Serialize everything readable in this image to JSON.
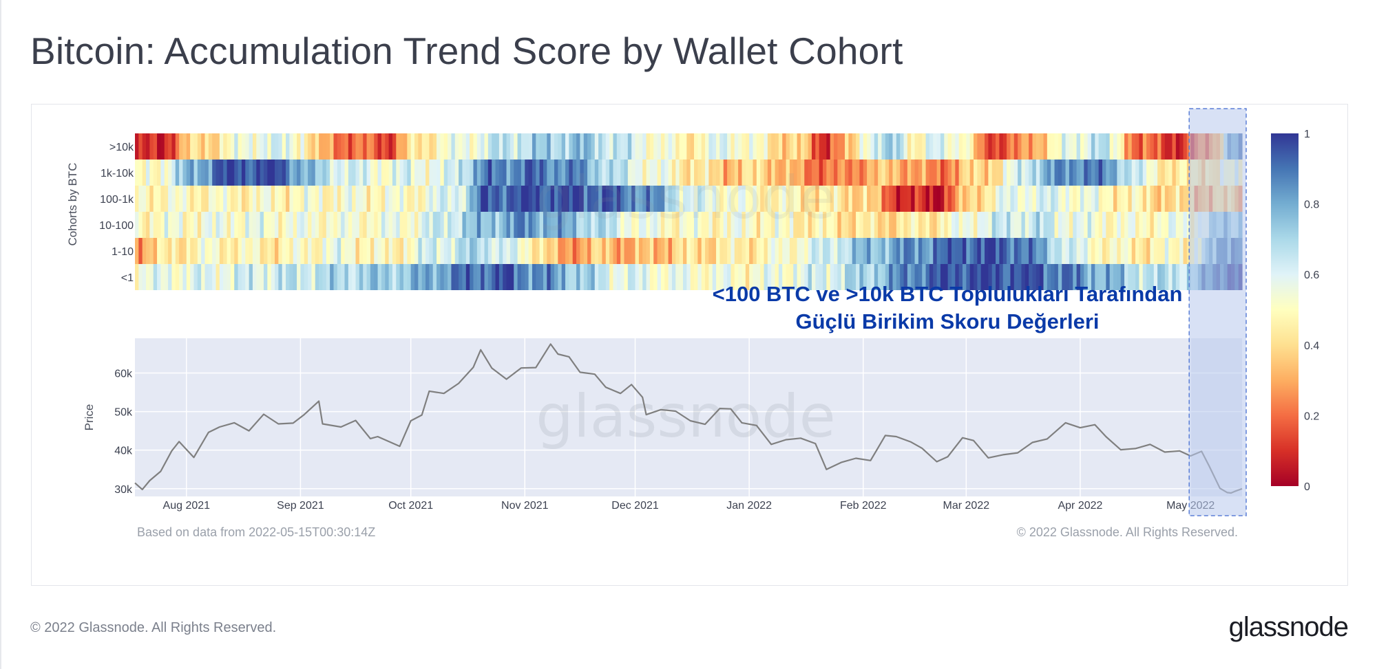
{
  "page": {
    "title": "Bitcoin: Accumulation Trend Score by Wallet Cohort",
    "footer_copyright": "© 2022 Glassnode. All Rights Reserved.",
    "footer_logo": "glassnode"
  },
  "chart": {
    "watermark": "glassnode",
    "source_note": "Based on data from 2022-05-15T00:30:14Z",
    "copyright": "© 2022 Glassnode. All Rights Reserved.",
    "annotation_line1": "<100 BTC ve >10k BTC Toplulukları Tarafından",
    "annotation_line2": "Güçlü Birikim Skoru Değerleri",
    "colors": {
      "annotation_text": "#0a3aa8",
      "highlight_fill": "#b8c8ec",
      "highlight_border": "#5b7fd6",
      "price_line": "#7f7f7f",
      "price_panel_bg": "#e5e9f4",
      "colorscale": [
        "#a50026",
        "#d73027",
        "#f46d43",
        "#fdae61",
        "#fee090",
        "#ffffbf",
        "#e0f3f8",
        "#abd9e9",
        "#74add1",
        "#4575b4",
        "#313695"
      ]
    }
  },
  "chart_data": [
    {
      "type": "heatmap",
      "ylabel": "Cohorts by BTC",
      "rows": [
        ">10k",
        "1k-10k",
        "100-1k",
        "10-100",
        "1-10",
        "<1"
      ],
      "colorbar_ticks": [
        "1",
        "0.8",
        "0.6",
        "0.4",
        "0.2",
        "0"
      ],
      "zlim": [
        0,
        1
      ],
      "x_range": [
        "2021-07-18",
        "2022-05-15"
      ],
      "highlight_range": [
        "2022-05-01",
        "2022-05-15"
      ],
      "bands": {
        ">10k": [
          [
            "2021-07-18",
            0.05
          ],
          [
            "2021-07-25",
            0.08
          ],
          [
            "2021-08-01",
            0.35
          ],
          [
            "2021-08-10",
            0.45
          ],
          [
            "2021-08-20",
            0.6
          ],
          [
            "2021-09-01",
            0.55
          ],
          [
            "2021-09-05",
            0.3
          ],
          [
            "2021-09-15",
            0.2
          ],
          [
            "2021-09-25",
            0.15
          ],
          [
            "2021-10-01",
            0.4
          ],
          [
            "2021-10-08",
            0.5
          ],
          [
            "2021-10-15",
            0.55
          ],
          [
            "2021-10-25",
            0.65
          ],
          [
            "2021-11-05",
            0.7
          ],
          [
            "2021-11-15",
            0.75
          ],
          [
            "2021-11-25",
            0.65
          ],
          [
            "2021-12-05",
            0.55
          ],
          [
            "2021-12-15",
            0.45
          ],
          [
            "2021-12-25",
            0.6
          ],
          [
            "2022-01-05",
            0.45
          ],
          [
            "2022-01-15",
            0.35
          ],
          [
            "2022-01-20",
            0.12
          ],
          [
            "2022-01-28",
            0.3
          ],
          [
            "2022-02-01",
            0.6
          ],
          [
            "2022-02-10",
            0.7
          ],
          [
            "2022-02-15",
            0.45
          ],
          [
            "2022-02-20",
            0.6
          ],
          [
            "2022-02-28",
            0.55
          ],
          [
            "2022-03-05",
            0.15
          ],
          [
            "2022-03-15",
            0.2
          ],
          [
            "2022-03-25",
            0.5
          ],
          [
            "2022-04-01",
            0.6
          ],
          [
            "2022-04-05",
            0.7
          ],
          [
            "2022-04-12",
            0.45
          ],
          [
            "2022-04-15",
            0.2
          ],
          [
            "2022-04-22",
            0.15
          ],
          [
            "2022-05-01",
            0.1
          ],
          [
            "2022-05-08",
            0.35
          ],
          [
            "2022-05-11",
            0.8
          ]
        ],
        "1k-10k": [
          [
            "2021-07-18",
            0.45
          ],
          [
            "2021-07-25",
            0.55
          ],
          [
            "2021-08-01",
            0.75
          ],
          [
            "2021-08-10",
            0.95
          ],
          [
            "2021-08-25",
            0.98
          ],
          [
            "2021-09-05",
            0.7
          ],
          [
            "2021-09-15",
            0.6
          ],
          [
            "2021-09-25",
            0.55
          ],
          [
            "2021-10-01",
            0.6
          ],
          [
            "2021-10-10",
            0.55
          ],
          [
            "2021-10-20",
            0.85
          ],
          [
            "2021-11-01",
            0.9
          ],
          [
            "2021-11-15",
            0.85
          ],
          [
            "2021-11-25",
            0.65
          ],
          [
            "2021-12-05",
            0.55
          ],
          [
            "2021-12-15",
            0.45
          ],
          [
            "2021-12-25",
            0.35
          ],
          [
            "2022-01-05",
            0.4
          ],
          [
            "2022-01-15",
            0.25
          ],
          [
            "2022-01-25",
            0.2
          ],
          [
            "2022-02-01",
            0.3
          ],
          [
            "2022-02-10",
            0.35
          ],
          [
            "2022-02-20",
            0.2
          ],
          [
            "2022-03-01",
            0.35
          ],
          [
            "2022-03-10",
            0.45
          ],
          [
            "2022-03-20",
            0.75
          ],
          [
            "2022-04-01",
            0.9
          ],
          [
            "2022-04-10",
            0.8
          ],
          [
            "2022-04-20",
            0.5
          ],
          [
            "2022-05-01",
            0.4
          ],
          [
            "2022-05-10",
            0.5
          ]
        ],
        "100-1k": [
          [
            "2021-07-18",
            0.5
          ],
          [
            "2021-08-15",
            0.48
          ],
          [
            "2021-09-15",
            0.52
          ],
          [
            "2021-10-01",
            0.5
          ],
          [
            "2021-10-15",
            0.65
          ],
          [
            "2021-10-20",
            0.92
          ],
          [
            "2021-11-01",
            0.97
          ],
          [
            "2021-11-20",
            0.95
          ],
          [
            "2021-12-05",
            0.85
          ],
          [
            "2021-12-15",
            0.6
          ],
          [
            "2022-01-01",
            0.5
          ],
          [
            "2022-01-15",
            0.45
          ],
          [
            "2022-02-01",
            0.4
          ],
          [
            "2022-02-10",
            0.1
          ],
          [
            "2022-02-20",
            0.05
          ],
          [
            "2022-03-01",
            0.35
          ],
          [
            "2022-03-10",
            0.55
          ],
          [
            "2022-03-20",
            0.6
          ],
          [
            "2022-04-01",
            0.55
          ],
          [
            "2022-04-15",
            0.45
          ],
          [
            "2022-05-01",
            0.35
          ],
          [
            "2022-05-10",
            0.35
          ]
        ],
        "10-100": [
          [
            "2021-07-18",
            0.5
          ],
          [
            "2021-08-15",
            0.55
          ],
          [
            "2021-09-15",
            0.52
          ],
          [
            "2021-10-01",
            0.55
          ],
          [
            "2021-10-15",
            0.7
          ],
          [
            "2021-11-01",
            0.85
          ],
          [
            "2021-11-15",
            0.75
          ],
          [
            "2021-12-01",
            0.55
          ],
          [
            "2021-12-15",
            0.5
          ],
          [
            "2022-01-01",
            0.52
          ],
          [
            "2022-01-20",
            0.45
          ],
          [
            "2022-02-05",
            0.4
          ],
          [
            "2022-02-20",
            0.45
          ],
          [
            "2022-03-05",
            0.6
          ],
          [
            "2022-03-20",
            0.65
          ],
          [
            "2022-04-01",
            0.55
          ],
          [
            "2022-04-15",
            0.5
          ],
          [
            "2022-05-01",
            0.55
          ],
          [
            "2022-05-10",
            0.75
          ]
        ],
        "1-10": [
          [
            "2021-07-18",
            0.3
          ],
          [
            "2021-07-25",
            0.4
          ],
          [
            "2021-08-05",
            0.5
          ],
          [
            "2021-08-25",
            0.45
          ],
          [
            "2021-09-10",
            0.55
          ],
          [
            "2021-09-25",
            0.45
          ],
          [
            "2021-10-05",
            0.6
          ],
          [
            "2021-10-20",
            0.7
          ],
          [
            "2021-11-05",
            0.45
          ],
          [
            "2021-11-10",
            0.25
          ],
          [
            "2021-11-20",
            0.35
          ],
          [
            "2021-12-01",
            0.3
          ],
          [
            "2021-12-15",
            0.4
          ],
          [
            "2022-01-01",
            0.45
          ],
          [
            "2022-01-15",
            0.55
          ],
          [
            "2022-02-01",
            0.75
          ],
          [
            "2022-02-15",
            0.85
          ],
          [
            "2022-03-01",
            0.95
          ],
          [
            "2022-03-15",
            0.92
          ],
          [
            "2022-04-01",
            0.55
          ],
          [
            "2022-04-15",
            0.45
          ],
          [
            "2022-05-01",
            0.5
          ],
          [
            "2022-05-10",
            0.9
          ]
        ],
        "<1": [
          [
            "2021-07-18",
            0.55
          ],
          [
            "2021-08-15",
            0.6
          ],
          [
            "2021-09-15",
            0.7
          ],
          [
            "2021-10-01",
            0.75
          ],
          [
            "2021-10-10",
            0.85
          ],
          [
            "2021-10-25",
            0.95
          ],
          [
            "2021-11-10",
            0.8
          ],
          [
            "2021-11-25",
            0.6
          ],
          [
            "2021-12-10",
            0.55
          ],
          [
            "2022-01-01",
            0.52
          ],
          [
            "2022-01-15",
            0.58
          ],
          [
            "2022-02-01",
            0.7
          ],
          [
            "2022-02-15",
            0.9
          ],
          [
            "2022-03-01",
            0.97
          ],
          [
            "2022-03-20",
            0.95
          ],
          [
            "2022-04-05",
            0.8
          ],
          [
            "2022-04-20",
            0.65
          ],
          [
            "2022-05-01",
            0.7
          ],
          [
            "2022-05-10",
            0.98
          ]
        ]
      }
    },
    {
      "type": "line",
      "ylabel": "Price",
      "ylim": [
        28000,
        69000
      ],
      "yticks": [
        "30k",
        "40k",
        "50k",
        "60k"
      ],
      "x_ticks": [
        "Aug 2021",
        "Sep 2021",
        "Oct 2021",
        "Nov 2021",
        "Dec 2021",
        "Jan 2022",
        "Feb 2022",
        "Mar 2022",
        "Apr 2022",
        "May 2022"
      ],
      "series": [
        {
          "points": [
            [
              "2021-07-18",
              31500
            ],
            [
              "2021-07-20",
              29800
            ],
            [
              "2021-07-22",
              32100
            ],
            [
              "2021-07-25",
              34500
            ],
            [
              "2021-07-28",
              39800
            ],
            [
              "2021-07-30",
              42200
            ],
            [
              "2021-08-03",
              38100
            ],
            [
              "2021-08-07",
              44600
            ],
            [
              "2021-08-10",
              46000
            ],
            [
              "2021-08-14",
              47100
            ],
            [
              "2021-08-18",
              45000
            ],
            [
              "2021-08-22",
              49300
            ],
            [
              "2021-08-26",
              46800
            ],
            [
              "2021-08-30",
              47000
            ],
            [
              "2021-09-02",
              49200
            ],
            [
              "2021-09-06",
              52700
            ],
            [
              "2021-09-07",
              46800
            ],
            [
              "2021-09-12",
              46000
            ],
            [
              "2021-09-16",
              47700
            ],
            [
              "2021-09-20",
              43000
            ],
            [
              "2021-09-22",
              43500
            ],
            [
              "2021-09-28",
              41000
            ],
            [
              "2021-10-01",
              47600
            ],
            [
              "2021-10-04",
              49100
            ],
            [
              "2021-10-06",
              55300
            ],
            [
              "2021-10-10",
              54700
            ],
            [
              "2021-10-14",
              57300
            ],
            [
              "2021-10-18",
              61500
            ],
            [
              "2021-10-20",
              66000
            ],
            [
              "2021-10-23",
              61300
            ],
            [
              "2021-10-27",
              58400
            ],
            [
              "2021-10-31",
              61300
            ],
            [
              "2021-11-04",
              61400
            ],
            [
              "2021-11-08",
              67500
            ],
            [
              "2021-11-10",
              64900
            ],
            [
              "2021-11-13",
              64200
            ],
            [
              "2021-11-16",
              60200
            ],
            [
              "2021-11-20",
              59700
            ],
            [
              "2021-11-23",
              56300
            ],
            [
              "2021-11-27",
              54700
            ],
            [
              "2021-11-30",
              57000
            ],
            [
              "2021-12-03",
              53700
            ],
            [
              "2021-12-04",
              49200
            ],
            [
              "2021-12-08",
              50500
            ],
            [
              "2021-12-12",
              50100
            ],
            [
              "2021-12-16",
              47600
            ],
            [
              "2021-12-20",
              46700
            ],
            [
              "2021-12-24",
              50800
            ],
            [
              "2021-12-27",
              50700
            ],
            [
              "2021-12-30",
              47100
            ],
            [
              "2022-01-03",
              46400
            ],
            [
              "2022-01-07",
              41500
            ],
            [
              "2022-01-11",
              42700
            ],
            [
              "2022-01-15",
              43100
            ],
            [
              "2022-01-19",
              41700
            ],
            [
              "2022-01-22",
              35000
            ],
            [
              "2022-01-26",
              36800
            ],
            [
              "2022-01-30",
              37900
            ],
            [
              "2022-02-03",
              37300
            ],
            [
              "2022-02-07",
              43800
            ],
            [
              "2022-02-10",
              43500
            ],
            [
              "2022-02-14",
              42100
            ],
            [
              "2022-02-17",
              40500
            ],
            [
              "2022-02-21",
              37000
            ],
            [
              "2022-02-24",
              38300
            ],
            [
              "2022-02-28",
              43200
            ],
            [
              "2022-03-03",
              42500
            ],
            [
              "2022-03-07",
              38000
            ],
            [
              "2022-03-11",
              38800
            ],
            [
              "2022-03-15",
              39300
            ],
            [
              "2022-03-19",
              42000
            ],
            [
              "2022-03-23",
              42900
            ],
            [
              "2022-03-28",
              47100
            ],
            [
              "2022-04-01",
              45800
            ],
            [
              "2022-04-05",
              46600
            ],
            [
              "2022-04-08",
              43500
            ],
            [
              "2022-04-12",
              40100
            ],
            [
              "2022-04-16",
              40400
            ],
            [
              "2022-04-20",
              41500
            ],
            [
              "2022-04-24",
              39500
            ],
            [
              "2022-04-28",
              39800
            ],
            [
              "2022-05-01",
              38500
            ],
            [
              "2022-05-04",
              39700
            ],
            [
              "2022-05-06",
              36000
            ],
            [
              "2022-05-09",
              30100
            ],
            [
              "2022-05-11",
              29000
            ],
            [
              "2022-05-12",
              28900
            ],
            [
              "2022-05-13",
              29300
            ],
            [
              "2022-05-15",
              30000
            ]
          ]
        }
      ]
    }
  ]
}
